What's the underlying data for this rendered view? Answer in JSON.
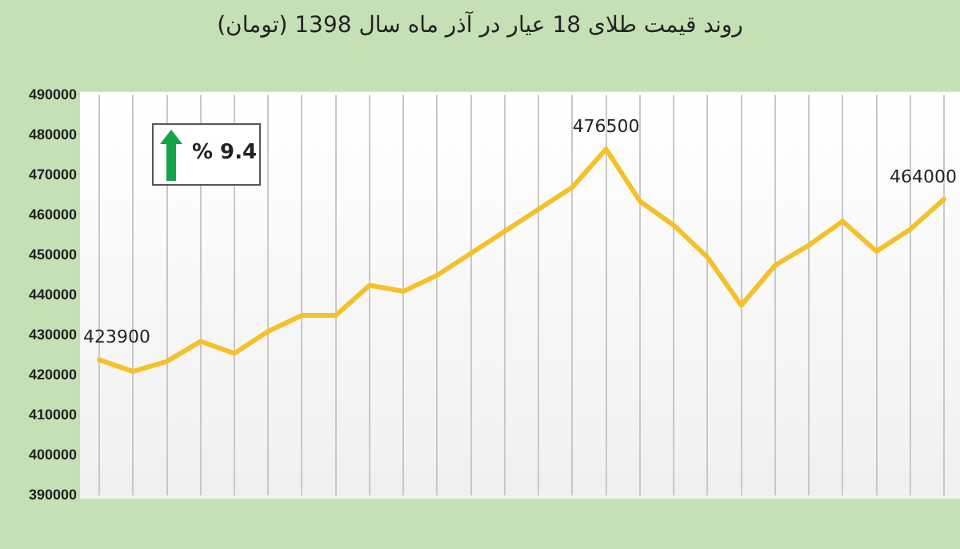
{
  "chart_data": {
    "type": "line",
    "title": "روند قیمت طلای 18 عیار در آذر ماه سال 1398 (تومان)",
    "categories": [
      null,
      null,
      null,
      null,
      null,
      null,
      null,
      null,
      null,
      null,
      null,
      null,
      null,
      null,
      null,
      null,
      null,
      null,
      null,
      null,
      null,
      null,
      null,
      null,
      null,
      null
    ],
    "series": [
      {
        "color": "#f5c02a",
        "values": [
          423900,
          421000,
          423500,
          428500,
          425500,
          431000,
          435000,
          435000,
          442500,
          441000,
          445000,
          450500,
          456000,
          461500,
          467000,
          476500,
          463500,
          457500,
          449500,
          437500,
          447500,
          452500,
          458500,
          451000,
          456500,
          464000
        ],
        "value_labels": [
          "423900",
          null,
          null,
          null,
          null,
          null,
          null,
          null,
          null,
          null,
          null,
          null,
          null,
          null,
          null,
          "476500",
          null,
          null,
          null,
          null,
          null,
          null,
          null,
          null,
          null,
          "464000"
        ]
      }
    ],
    "ylim": [
      390000,
      490000
    ],
    "yticks": [
      390000,
      400000,
      410000,
      420000,
      430000,
      440000,
      450000,
      460000,
      470000,
      480000,
      490000
    ],
    "annotations": [
      "% 9.4"
    ],
    "grid": "x",
    "legend": false,
    "marker": "none"
  }
}
